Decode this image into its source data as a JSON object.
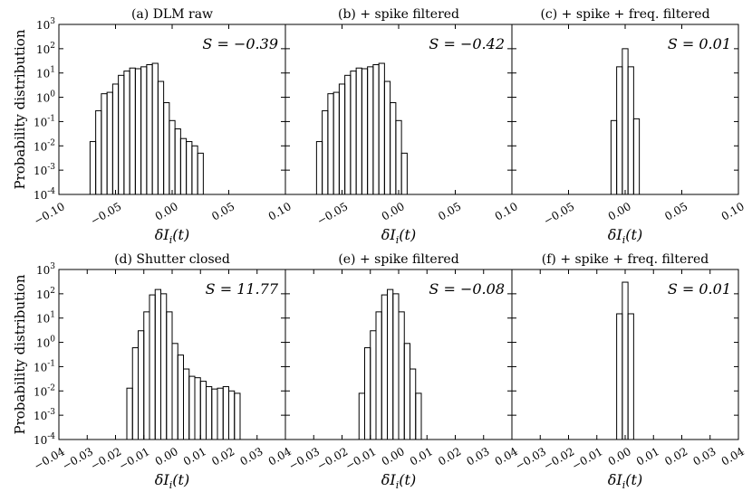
{
  "figure": {
    "ylabel": "Probability distribution",
    "xlabel": "δI",
    "xlabel_sub": "i",
    "xlabel_tail": "(t)"
  },
  "y_ticks": [
    {
      "base": "10",
      "exp": "3",
      "value": 1000
    },
    {
      "base": "10",
      "exp": "2",
      "value": 100
    },
    {
      "base": "10",
      "exp": "1",
      "value": 10
    },
    {
      "base": "10",
      "exp": "0",
      "value": 1
    },
    {
      "base": "10",
      "exp": "-1",
      "value": 0.1
    },
    {
      "base": "10",
      "exp": "-2",
      "value": 0.01
    },
    {
      "base": "10",
      "exp": "-3",
      "value": 0.001
    },
    {
      "base": "10",
      "exp": "-4",
      "value": 0.0001
    }
  ],
  "chart_data": [
    {
      "type": "bar",
      "title": "(a) DLM raw",
      "annotation": "S = −0.39",
      "xlim": [
        -0.1,
        0.1
      ],
      "ylim": [
        0.0001,
        1000
      ],
      "yscale": "log",
      "xticks": [
        "−0.10",
        "−0.05",
        "0.00",
        "0.05",
        "0.10"
      ],
      "xtick_values": [
        -0.1,
        -0.05,
        0.0,
        0.05,
        0.1
      ],
      "bin_start": -0.0725,
      "bin_width": 0.005,
      "values": [
        0.015,
        0.28,
        1.4,
        1.6,
        3.5,
        8,
        12,
        16,
        15,
        18,
        22,
        25,
        4.5,
        0.6,
        0.11,
        0.05,
        0.02,
        0.015,
        0.01,
        0.005
      ]
    },
    {
      "type": "bar",
      "title": "(b) + spike filtered",
      "annotation": "S = −0.42",
      "xlim": [
        -0.1,
        0.1
      ],
      "ylim": [
        0.0001,
        1000
      ],
      "yscale": "log",
      "xticks": [
        "−0.05",
        "0.00",
        "0.05",
        "0.10"
      ],
      "xtick_values": [
        -0.05,
        0.0,
        0.05,
        0.1
      ],
      "bin_start": -0.0725,
      "bin_width": 0.005,
      "values": [
        0.015,
        0.28,
        1.4,
        1.6,
        3.5,
        8,
        12,
        16,
        15,
        18,
        22,
        25,
        4.5,
        0.6,
        0.11,
        0.005
      ]
    },
    {
      "type": "bar",
      "title": "(c) + spike + freq. filtered",
      "annotation": "S = 0.01",
      "xlim": [
        -0.1,
        0.1
      ],
      "ylim": [
        0.0001,
        1000
      ],
      "yscale": "log",
      "xticks": [
        "−0.05",
        "0.00",
        "0.05",
        "0.10"
      ],
      "xtick_values": [
        -0.05,
        0.0,
        0.05,
        0.1
      ],
      "bin_start": -0.0125,
      "bin_width": 0.005,
      "values": [
        0.11,
        18,
        100,
        18,
        0.13
      ]
    },
    {
      "type": "bar",
      "title": "(d) Shutter closed",
      "annotation": "S = 11.77",
      "xlim": [
        -0.04,
        0.04
      ],
      "ylim": [
        0.0001,
        1000
      ],
      "yscale": "log",
      "xticks": [
        "−0.04",
        "−0.03",
        "−0.02",
        "−0.01",
        "0.00",
        "0.01",
        "0.02",
        "0.03",
        "0.04"
      ],
      "xtick_values": [
        -0.04,
        -0.03,
        -0.02,
        -0.01,
        0.0,
        0.01,
        0.02,
        0.03,
        0.04
      ],
      "bin_start": -0.016,
      "bin_width": 0.002,
      "values": [
        0.013,
        0.6,
        3,
        18,
        90,
        150,
        100,
        18,
        0.9,
        0.3,
        0.08,
        0.04,
        0.035,
        0.025,
        0.015,
        0.012,
        0.013,
        0.015,
        0.01,
        0.008
      ]
    },
    {
      "type": "bar",
      "title": "(e) + spike filtered",
      "annotation": "S = −0.08",
      "xlim": [
        -0.04,
        0.04
      ],
      "ylim": [
        0.0001,
        1000
      ],
      "yscale": "log",
      "xticks": [
        "−0.03",
        "−0.02",
        "−0.01",
        "0.00",
        "0.01",
        "0.02",
        "0.03",
        "0.04"
      ],
      "xtick_values": [
        -0.03,
        -0.02,
        -0.01,
        0.0,
        0.01,
        0.02,
        0.03,
        0.04
      ],
      "bin_start": -0.014,
      "bin_width": 0.002,
      "values": [
        0.008,
        0.6,
        3,
        18,
        90,
        150,
        100,
        18,
        0.9,
        0.08,
        0.008
      ]
    },
    {
      "type": "bar",
      "title": "(f) + spike + freq. filtered",
      "annotation": "S = 0.01",
      "xlim": [
        -0.04,
        0.04
      ],
      "ylim": [
        0.0001,
        1000
      ],
      "yscale": "log",
      "xticks": [
        "−0.03",
        "−0.02",
        "−0.01",
        "0.00",
        "0.01",
        "0.02",
        "0.03",
        "0.04"
      ],
      "xtick_values": [
        -0.03,
        -0.02,
        -0.01,
        0.0,
        0.01,
        0.02,
        0.03,
        0.04
      ],
      "bin_start": -0.003,
      "bin_width": 0.002,
      "values": [
        15,
        300,
        15
      ]
    }
  ]
}
